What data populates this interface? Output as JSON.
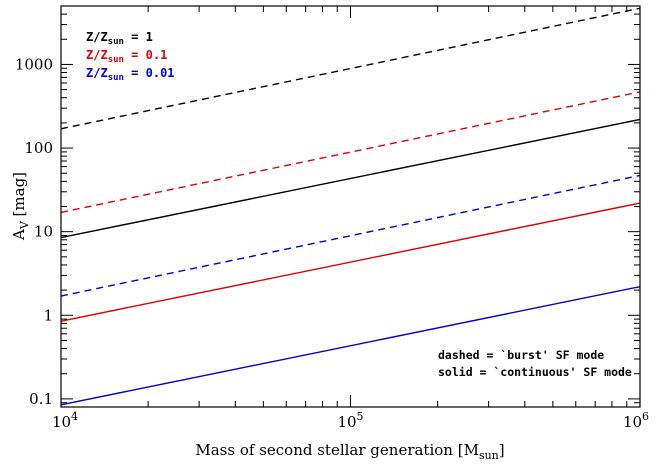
{
  "chart_data": {
    "type": "line",
    "xlabel": "Mass of second stellar generation [M",
    "xlabel_sub": "sun",
    "xlabel_end": "]",
    "ylabel": "A",
    "ylabel_sub": "V",
    "ylabel_end": " [mag]",
    "xscale": "log",
    "yscale": "log",
    "xlim": [
      10000,
      1000000
    ],
    "ylim": [
      0.08,
      5000
    ],
    "grid": false,
    "x_ticks": [
      {
        "value": 10000,
        "base": "10",
        "exp": "4"
      },
      {
        "value": 100000,
        "base": "10",
        "exp": "5"
      },
      {
        "value": 1000000,
        "base": "10",
        "exp": "6"
      }
    ],
    "y_ticks": [
      {
        "value": 0.1,
        "label": "0.1"
      },
      {
        "value": 1,
        "label": "1"
      },
      {
        "value": 10,
        "label": "10"
      },
      {
        "value": 100,
        "label": "100"
      },
      {
        "value": 1000,
        "label": "1000"
      }
    ],
    "legend": {
      "placement": "top-left",
      "entries": [
        {
          "prefix": "Z/Z",
          "sub": "sun",
          "suffix": " = 1",
          "color": "#000000"
        },
        {
          "prefix": "Z/Z",
          "sub": "sun",
          "suffix": " = 0.1",
          "color": "#e00000"
        },
        {
          "prefix": "Z/Z",
          "sub": "sun",
          "suffix": " = 0.01",
          "color": "#0000cc"
        }
      ]
    },
    "annotations": [
      "dashed = `burst' SF mode",
      "solid = `continuous' SF mode"
    ],
    "series": [
      {
        "color": "#000000",
        "style": "dashed",
        "x": [
          10000,
          1000000
        ],
        "y": [
          170,
          4700
        ]
      },
      {
        "color": "#e00000",
        "style": "dashed",
        "x": [
          10000,
          1000000
        ],
        "y": [
          17,
          470
        ]
      },
      {
        "color": "#0000cc",
        "style": "dashed",
        "x": [
          10000,
          1000000
        ],
        "y": [
          1.7,
          47
        ]
      },
      {
        "color": "#000000",
        "style": "solid",
        "x": [
          10000,
          1000000
        ],
        "y": [
          8.5,
          220
        ]
      },
      {
        "color": "#e00000",
        "style": "solid",
        "x": [
          10000,
          1000000
        ],
        "y": [
          0.85,
          22
        ]
      },
      {
        "color": "#0000cc",
        "style": "solid",
        "x": [
          10000,
          1000000
        ],
        "y": [
          0.085,
          2.2
        ]
      }
    ]
  }
}
